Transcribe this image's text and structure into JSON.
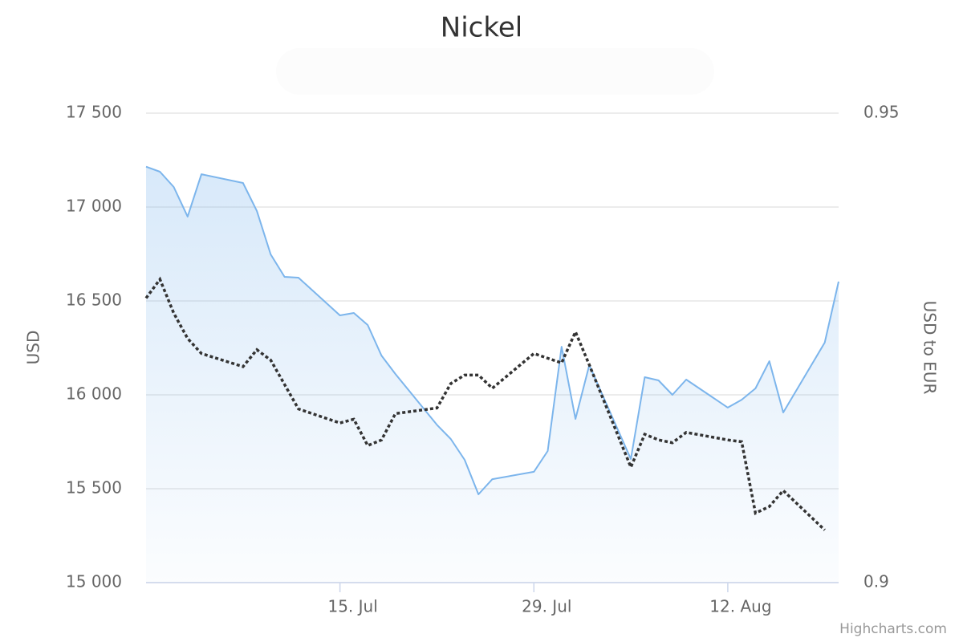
{
  "chart_data": {
    "type": "area-line",
    "title": "Nickel",
    "ylabel": "USD",
    "y2label": "USD to EUR",
    "credits": "Highcharts.com",
    "x": [
      "1. Jul",
      "2. Jul",
      "3. Jul",
      "4. Jul",
      "5. Jul",
      "8. Jul",
      "9. Jul",
      "10. Jul",
      "11. Jul",
      "12. Jul",
      "15. Jul",
      "16. Jul",
      "17. Jul",
      "18. Jul",
      "19. Jul",
      "22. Jul",
      "23. Jul",
      "24. Jul",
      "25. Jul",
      "26. Jul",
      "29. Jul",
      "30. Jul",
      "31. Jul",
      "1. Aug",
      "2. Aug",
      "5. Aug",
      "6. Aug",
      "7. Aug",
      "8. Aug",
      "9. Aug",
      "12. Aug",
      "13. Aug",
      "14. Aug",
      "15. Aug",
      "16. Aug",
      "19. Aug",
      "20. Aug"
    ],
    "xlim": [
      "1. Jul",
      "20. Aug"
    ],
    "xticks": [
      "15. Jul",
      "29. Jul",
      "12. Aug"
    ],
    "series": [
      {
        "type": "area",
        "color": "#7cb5ec",
        "values": [
          17215,
          17188,
          17107,
          16949,
          17175,
          17128,
          16979,
          16748,
          16628,
          16624,
          16423,
          16436,
          16372,
          16209,
          16111,
          15840,
          15765,
          15654,
          15470,
          15551,
          15590,
          15701,
          16256,
          15872,
          16158,
          15658,
          16094,
          16077,
          16000,
          16081,
          15932,
          15974,
          16034,
          16179,
          15906,
          16278,
          16603
        ]
      },
      {
        "type": "line",
        "axis": "y2",
        "color": "#333333",
        "dashed": true,
        "values": [
          0.9303,
          0.9323,
          0.9287,
          0.926,
          0.9244,
          0.923,
          0.9248,
          0.9237,
          0.9211,
          0.9185,
          0.917,
          0.9174,
          0.9146,
          0.9152,
          0.918,
          0.9186,
          0.9212,
          0.9221,
          0.9221,
          0.9207,
          0.9244,
          0.9239,
          0.9234,
          0.9267,
          0.9232,
          0.9123,
          0.9158,
          0.9152,
          0.9149,
          0.916,
          0.9152,
          0.915,
          0.9074,
          0.9081,
          0.9098,
          0.9056,
          null
        ]
      }
    ],
    "ylim": [
      15000,
      17500
    ],
    "yticks": [
      {
        "value": 15000,
        "label": "15 000"
      },
      {
        "value": 15500,
        "label": "15 500"
      },
      {
        "value": 16000,
        "label": "16 000"
      },
      {
        "value": 16500,
        "label": "16 500"
      },
      {
        "value": 17000,
        "label": "17 000"
      },
      {
        "value": 17500,
        "label": "17 500"
      }
    ],
    "y2lim": [
      0.9,
      0.95
    ],
    "y2ticks": [
      0.9,
      0.95
    ],
    "grid": true
  }
}
